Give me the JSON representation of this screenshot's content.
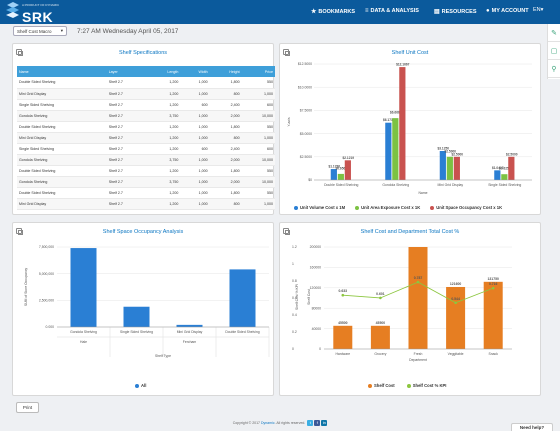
{
  "header": {
    "brand": "SRK",
    "tagline": "A PRODUCT OF DYNAMIC",
    "nav": [
      {
        "icon": "★",
        "label": "BOOKMARKS"
      },
      {
        "icon": "≡",
        "label": "DATA & ANALYSIS"
      },
      {
        "icon": "▤",
        "label": "RESOURCES"
      },
      {
        "icon": "●",
        "label": "MY ACCOUNT"
      }
    ],
    "lang": "EN▾"
  },
  "sidebar": [
    {
      "icon": "✎"
    },
    {
      "icon": "▢"
    },
    {
      "icon": "⚲"
    }
  ],
  "toolbar": {
    "selector": "Shelf Cost Macro",
    "caret": "▾",
    "datetime": "7:27 AM Wednesday April 05, 2017"
  },
  "spec": {
    "title": "Shelf Specifications",
    "columns": [
      "Name",
      "Layer",
      "Length",
      "Width",
      "Height",
      "Price"
    ],
    "rows": [
      [
        "Double Sided Shelving",
        "Shelf 2.7",
        "1,200",
        "1,000",
        "1,800",
        "550"
      ],
      [
        "Mini Grid Display",
        "Shelf 2.7",
        "1,200",
        "1,000",
        "800",
        "1,000"
      ],
      [
        "Single Sided Shelving",
        "Shelf 2.7",
        "1,200",
        "600",
        "2,400",
        "600"
      ],
      [
        "Gondola Shelving",
        "Shelf 2.7",
        "3,750",
        "1,000",
        "2,000",
        "10,000"
      ],
      [
        "Double Sided Shelving",
        "Shelf 2.7",
        "1,200",
        "1,000",
        "1,800",
        "550"
      ],
      [
        "Mini Grid Display",
        "Shelf 2.7",
        "1,200",
        "1,000",
        "800",
        "1,000"
      ],
      [
        "Single Sided Shelving",
        "Shelf 2.7",
        "1,200",
        "600",
        "2,400",
        "600"
      ],
      [
        "Gondola Shelving",
        "Shelf 2.7",
        "3,750",
        "1,000",
        "2,000",
        "10,000"
      ],
      [
        "Double Sided Shelving",
        "Shelf 2.7",
        "1,200",
        "1,000",
        "1,800",
        "550"
      ],
      [
        "Gondola Shelving",
        "Shelf 2.7",
        "3,750",
        "1,000",
        "2,000",
        "10,000"
      ],
      [
        "Double Sided Shelving",
        "Shelf 2.7",
        "1,200",
        "1,000",
        "1,800",
        "550"
      ],
      [
        "Mini Grid Display",
        "Shelf 2.7",
        "1,200",
        "1,000",
        "800",
        "1,000"
      ]
    ]
  },
  "chart_data": [
    {
      "type": "bar",
      "title": "Shelf Unit Cost",
      "ylabel": "Y-axis",
      "xlabel": "Name",
      "ylim": [
        0,
        12.5
      ],
      "yticks": [
        "$0",
        "$2.5000",
        "$5.0000",
        "$7.5000",
        "$10.0000",
        "$12.5000"
      ],
      "categories": [
        "Double Sided Shelving",
        "Gondola Shelving",
        "Mini Grid Display",
        "Single Sided Shelving"
      ],
      "legend": "bottom",
      "series": [
        {
          "name": "Unit Volume Cost x 1M",
          "color": "#2a7fd4",
          "values": [
            1.1786,
            6.1736,
            3.125,
            1.0417
          ],
          "labels": [
            "$1.1786",
            "$6.1736",
            "$3.1250",
            "$1.0417"
          ]
        },
        {
          "name": "Unit Area Exposure Cost x 1K",
          "color": "#7cc243",
          "values": [
            0.6566,
            6.6667,
            2.5,
            0.625
          ],
          "labels": [
            "$0.6566",
            "$6.6667",
            "$2.5000",
            "$0.6250"
          ]
        },
        {
          "name": "Unit Space Occupancy Cost x 1K",
          "color": "#c9524f",
          "values": [
            2.1219,
            12.1667,
            2.5,
            2.5
          ],
          "labels": [
            "$2.1219",
            "$12.1667",
            "$2.5000",
            "$2.5000"
          ]
        }
      ]
    },
    {
      "type": "bar",
      "title": "Shelf Space Occupancy Analysis",
      "ylabel": "SUM of Store Occupancy",
      "xlabel": "Shelf Type",
      "ylim": [
        0,
        7500000
      ],
      "yticks": [
        "0.000",
        "2,500,000",
        "5,000,000",
        "7,500,000"
      ],
      "categories": [
        "Gondola Shelving",
        "Single Sided Shelving",
        "Mini Grid Display",
        "Double Sided Shelving"
      ],
      "groups": [
        {
          "label": "Hale",
          "span": 1
        },
        {
          "label": "Fercham",
          "span": 3
        }
      ],
      "legend": "bottom",
      "series": [
        {
          "name": "All",
          "color": "#2a7fd4",
          "values": [
            7400000,
            1900000,
            200000,
            5400000
          ]
        }
      ]
    },
    {
      "type": "bar",
      "title": "Shelf Cost and Department Total Cost %",
      "xlabel": "Department",
      "ylabel": "Shelf Cost",
      "y2label": "Shelf Cost % KPI",
      "ylim": [
        0,
        200000
      ],
      "yticks": [
        "0",
        "40000",
        "80000",
        "120000",
        "160000",
        "200000"
      ],
      "y2lim": [
        0,
        1.2
      ],
      "y2ticks": [
        "0",
        "0.2",
        "0.4",
        "0.6",
        "0.8",
        "1",
        "1.2"
      ],
      "categories": [
        "Hardware",
        "Grocery",
        "Fresh",
        "Veggitable",
        "Snack"
      ],
      "legend": "bottom",
      "series": [
        {
          "name": "Shelf Cost",
          "type": "bar",
          "color": "#e67e22",
          "values": [
            45500,
            45500,
            200000,
            121600,
            131750
          ],
          "labels": [
            "45500",
            "45500",
            "",
            "121600",
            "131750"
          ]
        },
        {
          "name": "Shelf Cost % KPI",
          "type": "line",
          "color": "#8cc63f",
          "values": [
            0.633,
            0.601,
            0.787,
            0.544,
            0.716
          ],
          "labels": [
            "0.633",
            "0.601",
            "0.787",
            "0.544",
            "0.716"
          ]
        }
      ]
    }
  ],
  "footer": {
    "print": "Print",
    "copyright": "Copyright © 2017 ",
    "company": "Dynamic",
    "rights": ". All rights reserved.",
    "social": [
      "t",
      "f",
      "in"
    ],
    "help": "Need help?"
  }
}
